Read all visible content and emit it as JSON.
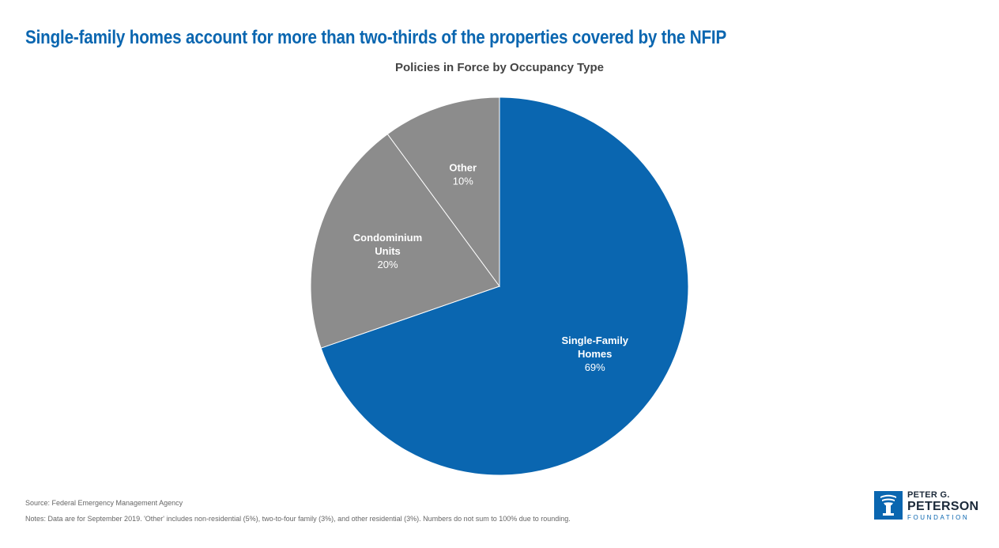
{
  "headline": "Single-family homes account for more than two-thirds of the properties covered by the NFIP",
  "chart_data": {
    "type": "pie",
    "title": "Policies in Force by Occupancy Type",
    "slices": [
      {
        "name": "single-family",
        "label_lines": [
          "Single-Family",
          "Homes"
        ],
        "value": 69,
        "value_label": "69%",
        "color": "#0a66b0"
      },
      {
        "name": "condominium",
        "label_lines": [
          "Condominium",
          "Units"
        ],
        "value": 20,
        "value_label": "20%",
        "color": "#8c8c8c"
      },
      {
        "name": "other",
        "label_lines": [
          "Other"
        ],
        "value": 10,
        "value_label": "10%",
        "color": "#8c8c8c"
      }
    ]
  },
  "footer": {
    "source": "Source: Federal Emergency Management Agency",
    "notes": "Notes: Data are for September 2019. 'Other' includes non-residential (5%), two-to-four family (3%), and other residential (3%). Numbers do not sum to 100% due to rounding."
  },
  "logo": {
    "line1": "PETER G.",
    "line2": "PETERSON",
    "line3": "FOUNDATION"
  }
}
